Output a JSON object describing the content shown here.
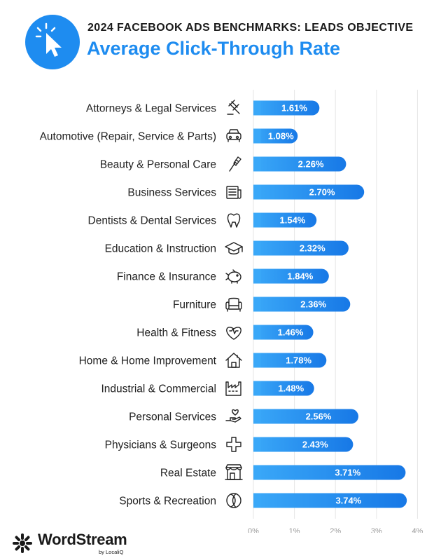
{
  "header": {
    "supertitle": "2024 FACEBOOK ADS BENCHMARKS: LEADS OBJECTIVE",
    "title": "Average Click-Through Rate",
    "icon": "cursor-click-icon",
    "accent_color": "#1e8cf0"
  },
  "chart_data": {
    "type": "bar",
    "orientation": "horizontal",
    "title": "Average Click-Through Rate",
    "categories": [
      "Attorneys & Legal Services",
      "Automotive (Repair, Service & Parts)",
      "Beauty & Personal Care",
      "Business Services",
      "Dentists & Dental Services",
      "Education & Instruction",
      "Finance & Insurance",
      "Furniture",
      "Health & Fitness",
      "Home & Home Improvement",
      "Industrial & Commercial",
      "Personal Services",
      "Physicians & Surgeons",
      "Real Estate",
      "Sports & Recreation"
    ],
    "values": [
      1.61,
      1.08,
      2.26,
      2.7,
      1.54,
      2.32,
      1.84,
      2.36,
      1.46,
      1.78,
      1.48,
      2.56,
      2.43,
      3.71,
      3.74
    ],
    "value_labels": [
      "1.61%",
      "1.08%",
      "2.26%",
      "2.70%",
      "1.54%",
      "2.32%",
      "1.84%",
      "2.36%",
      "1.46%",
      "1.78%",
      "1.48%",
      "2.56%",
      "2.43%",
      "3.71%",
      "3.74%"
    ],
    "category_icons": [
      "gavel-icon",
      "car-icon",
      "comb-icon",
      "newspaper-icon",
      "tooth-icon",
      "graduation-cap-icon",
      "piggy-bank-icon",
      "armchair-icon",
      "heart-icon",
      "house-icon",
      "factory-icon",
      "hand-heart-icon",
      "medical-cross-icon",
      "storefront-icon",
      "ball-icon"
    ],
    "xlim": [
      0,
      4
    ],
    "xticks": [
      "0%",
      "1%",
      "2%",
      "3%",
      "4%"
    ],
    "grid": true,
    "bar_color_start": "#3aa8f8",
    "bar_color_end": "#1778e6"
  },
  "footer": {
    "brand": "WordStream",
    "sub_brand": "by LocaliQ"
  }
}
